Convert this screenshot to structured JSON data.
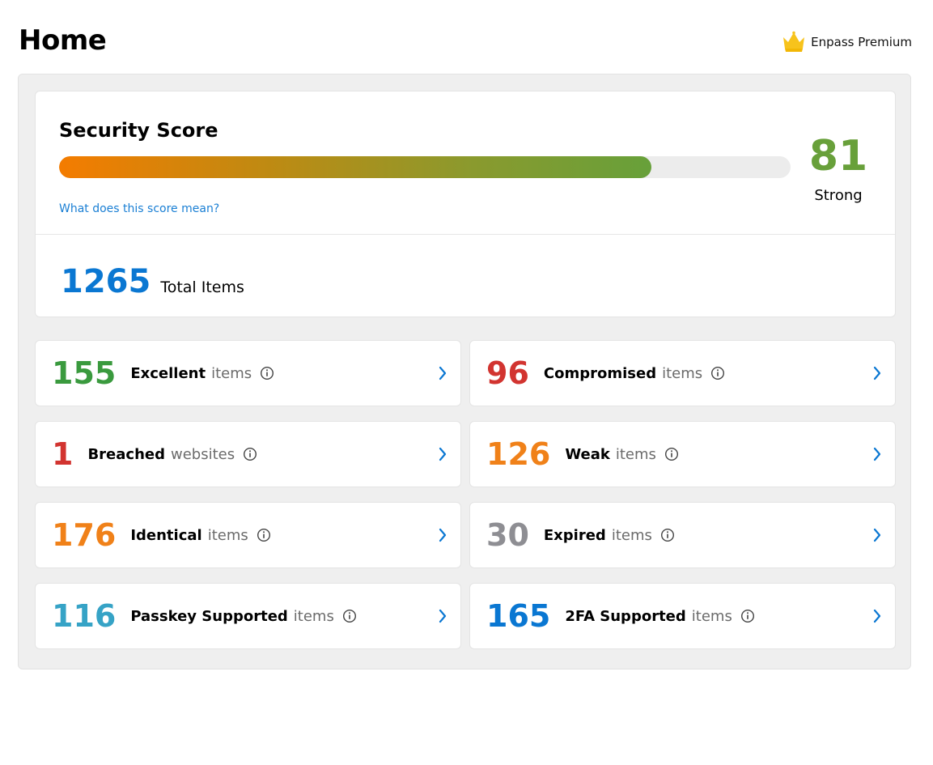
{
  "header": {
    "title": "Home",
    "premium_label": "Enpass Premium"
  },
  "security_score": {
    "title": "Security Score",
    "value": "81",
    "rating": "Strong",
    "progress_percent": 81,
    "help_link": "What does this score mean?"
  },
  "total_items": {
    "count": "1265",
    "label": "Total Items"
  },
  "stats": [
    {
      "number": "155",
      "label": "Excellent",
      "unit": "items",
      "color": "#3a9a3e"
    },
    {
      "number": "96",
      "label": "Compromised",
      "unit": "items",
      "color": "#d23430"
    },
    {
      "number": "1",
      "label": "Breached",
      "unit": "websites",
      "color": "#d23430"
    },
    {
      "number": "126",
      "label": "Weak",
      "unit": "items",
      "color": "#f08119"
    },
    {
      "number": "176",
      "label": "Identical",
      "unit": "items",
      "color": "#f08119"
    },
    {
      "number": "30",
      "label": "Expired",
      "unit": "items",
      "color": "#8e8e93"
    },
    {
      "number": "116",
      "label": "Passkey Supported",
      "unit": "items",
      "color": "#36a3c6"
    },
    {
      "number": "165",
      "label": "2FA Supported",
      "unit": "items",
      "color": "#0a77d2"
    }
  ],
  "colors": {
    "accent": "#0a77d2",
    "link": "#1a7fd4",
    "score_good": "#68a03a",
    "crown": "#f7c31c"
  }
}
